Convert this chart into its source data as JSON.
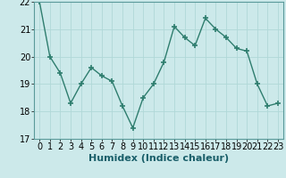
{
  "x": [
    0,
    1,
    2,
    3,
    4,
    5,
    6,
    7,
    8,
    9,
    10,
    11,
    12,
    13,
    14,
    15,
    16,
    17,
    18,
    19,
    20,
    21,
    22,
    23
  ],
  "y": [
    22.0,
    20.0,
    19.4,
    18.3,
    19.0,
    19.6,
    19.3,
    19.1,
    18.2,
    17.4,
    18.5,
    19.0,
    19.8,
    21.1,
    20.7,
    20.4,
    21.4,
    21.0,
    20.7,
    20.3,
    20.2,
    19.0,
    18.2,
    18.3
  ],
  "xlabel": "Humidex (Indice chaleur)",
  "ylim": [
    17,
    22
  ],
  "xlim_min": -0.5,
  "xlim_max": 23.5,
  "yticks": [
    17,
    18,
    19,
    20,
    21,
    22
  ],
  "xtick_labels": [
    "0",
    "1",
    "2",
    "3",
    "4",
    "5",
    "6",
    "7",
    "8",
    "9",
    "10",
    "11",
    "12",
    "13",
    "14",
    "15",
    "16",
    "17",
    "18",
    "19",
    "20",
    "21",
    "22",
    "23"
  ],
  "line_color": "#2e7d6e",
  "marker": "+",
  "bg_color": "#cce9ea",
  "grid_color": "#b0d8d8",
  "xlabel_fontsize": 8,
  "tick_fontsize": 7,
  "linewidth": 1.0,
  "markersize": 4,
  "markeredgewidth": 1.2
}
